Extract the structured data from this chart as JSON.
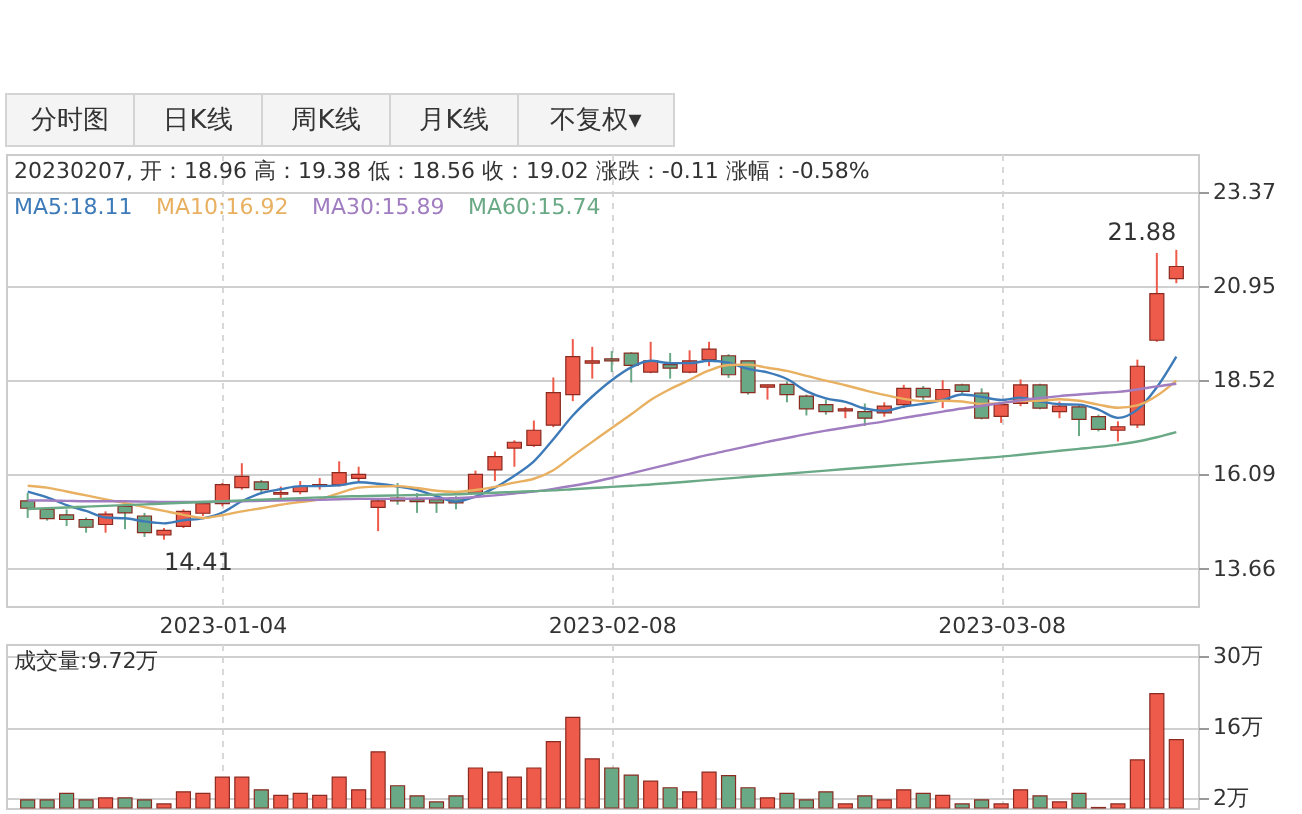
{
  "chart_data": [
    {
      "type": "other",
      "annotations": [
        "分时图",
        "日K线",
        "周K线",
        "月K线",
        "不复权▾"
      ]
    },
    {
      "type": "candlestick",
      "categories": [
        null,
        null,
        null,
        null,
        null,
        null,
        null,
        null,
        null,
        null,
        "2023-01-04",
        null,
        null,
        null,
        null,
        null,
        null,
        null,
        null,
        null,
        null,
        null,
        null,
        null,
        null,
        null,
        null,
        null,
        null,
        null,
        "2023-02-08",
        null,
        null,
        null,
        null,
        null,
        null,
        null,
        null,
        null,
        null,
        null,
        null,
        null,
        null,
        null,
        null,
        null,
        null,
        null,
        "2023-03-08",
        null,
        null,
        null,
        null,
        null,
        null,
        null,
        null,
        null
      ],
      "ohlc": [
        [
          15.41,
          15.61,
          14.97,
          15.22
        ],
        [
          15.19,
          15.24,
          14.9,
          14.95
        ],
        [
          15.05,
          15.19,
          14.76,
          14.93
        ],
        [
          14.93,
          14.98,
          14.59,
          14.73
        ],
        [
          14.8,
          15.14,
          14.59,
          15.07
        ],
        [
          15.27,
          15.41,
          14.68,
          15.1
        ],
        [
          15.02,
          15.1,
          14.48,
          14.59
        ],
        [
          14.53,
          14.71,
          14.41,
          14.65
        ],
        [
          14.75,
          15.19,
          14.71,
          15.14
        ],
        [
          15.09,
          15.41,
          15.02,
          15.34
        ],
        [
          15.34,
          15.87,
          15.27,
          15.83
        ],
        [
          15.75,
          16.38,
          15.7,
          16.04
        ],
        [
          15.9,
          15.95,
          15.58,
          15.7
        ],
        [
          15.58,
          15.78,
          15.48,
          15.62
        ],
        [
          15.65,
          15.92,
          15.58,
          15.78
        ],
        [
          15.78,
          16.0,
          15.7,
          15.83
        ],
        [
          15.83,
          16.43,
          15.78,
          16.14
        ],
        [
          15.99,
          16.29,
          15.87,
          16.09
        ],
        [
          15.24,
          15.48,
          14.63,
          15.41
        ],
        [
          15.48,
          15.87,
          15.31,
          15.41
        ],
        [
          15.44,
          15.61,
          15.1,
          15.39
        ],
        [
          15.44,
          15.53,
          15.1,
          15.36
        ],
        [
          15.48,
          15.53,
          15.19,
          15.36
        ],
        [
          15.61,
          16.19,
          15.58,
          16.09
        ],
        [
          16.21,
          16.68,
          15.92,
          16.55
        ],
        [
          16.77,
          16.97,
          16.29,
          16.92
        ],
        [
          16.84,
          17.48,
          16.8,
          17.23
        ],
        [
          17.36,
          18.59,
          17.31,
          18.2
        ],
        [
          18.15,
          19.58,
          17.98,
          19.13
        ],
        [
          18.96,
          19.38,
          18.56,
          19.02
        ],
        [
          19.07,
          19.27,
          18.73,
          19.02
        ],
        [
          19.22,
          19.24,
          18.46,
          18.9
        ],
        [
          18.73,
          19.51,
          18.7,
          19.02
        ],
        [
          18.92,
          19.22,
          18.56,
          18.83
        ],
        [
          18.73,
          19.29,
          18.7,
          19.02
        ],
        [
          19.05,
          19.51,
          18.88,
          19.32
        ],
        [
          19.15,
          19.19,
          18.58,
          18.66
        ],
        [
          19.02,
          19.02,
          18.15,
          18.2
        ],
        [
          18.34,
          18.4,
          18.02,
          18.4
        ],
        [
          18.41,
          18.49,
          17.95,
          18.15
        ],
        [
          18.11,
          18.15,
          17.61,
          17.78
        ],
        [
          17.89,
          18.02,
          17.63,
          17.71
        ],
        [
          17.73,
          17.83,
          17.54,
          17.78
        ],
        [
          17.71,
          17.92,
          17.34,
          17.54
        ],
        [
          17.68,
          17.95,
          17.58,
          17.85
        ],
        [
          17.89,
          18.4,
          17.8,
          18.31
        ],
        [
          18.31,
          18.37,
          17.97,
          18.09
        ],
        [
          18.02,
          18.52,
          17.8,
          18.28
        ],
        [
          18.4,
          18.43,
          18.14,
          18.23
        ],
        [
          18.19,
          18.31,
          17.51,
          17.54
        ],
        [
          17.59,
          17.94,
          17.42,
          17.89
        ],
        [
          17.92,
          18.54,
          17.85,
          18.4
        ],
        [
          18.4,
          18.43,
          17.77,
          17.8
        ],
        [
          17.71,
          17.97,
          17.54,
          17.85
        ],
        [
          17.83,
          17.89,
          17.08,
          17.51
        ],
        [
          17.58,
          17.63,
          17.2,
          17.25
        ],
        [
          17.23,
          17.46,
          16.94,
          17.32
        ],
        [
          17.37,
          19.05,
          17.29,
          18.88
        ],
        [
          19.55,
          21.8,
          19.51,
          20.75
        ],
        [
          21.14,
          21.88,
          21.02,
          21.45
        ]
      ],
      "colors": [
        "#6aa985",
        "#6aa985",
        "#6aa985",
        "#6aa985",
        "#ee5b4b",
        "#6aa985",
        "#6aa985",
        "#ee5b4b",
        "#ee5b4b",
        "#ee5b4b",
        "#ee5b4b",
        "#ee5b4b",
        "#6aa985",
        "#ee5b4b",
        "#ee5b4b",
        "#ee5b4b",
        "#ee5b4b",
        "#ee5b4b",
        "#ee5b4b",
        "#6aa985",
        "#6aa985",
        "#6aa985",
        "#6aa985",
        "#ee5b4b",
        "#ee5b4b",
        "#ee5b4b",
        "#ee5b4b",
        "#ee5b4b",
        "#ee5b4b",
        "#ee5b4b",
        "#6aa985",
        "#6aa985",
        "#ee5b4b",
        "#6aa985",
        "#ee5b4b",
        "#ee5b4b",
        "#6aa985",
        "#6aa985",
        "#ee5b4b",
        "#6aa985",
        "#6aa985",
        "#6aa985",
        "#ee5b4b",
        "#6aa985",
        "#ee5b4b",
        "#ee5b4b",
        "#6aa985",
        "#ee5b4b",
        "#6aa985",
        "#6aa985",
        "#ee5b4b",
        "#ee5b4b",
        "#6aa985",
        "#ee5b4b",
        "#6aa985",
        "#6aa985",
        "#ee5b4b",
        "#ee5b4b",
        "#ee5b4b",
        "#ee5b4b"
      ],
      "series": [
        {
          "name": "MA5:18.11",
          "type": "line",
          "color": "#3d7ab8",
          "values": [
            15.65,
            15.5,
            15.3,
            15.15,
            14.98,
            14.96,
            14.88,
            14.83,
            14.91,
            14.96,
            15.11,
            15.4,
            15.61,
            15.71,
            15.79,
            15.79,
            15.81,
            15.89,
            15.85,
            15.78,
            15.69,
            15.53,
            15.39,
            15.52,
            15.75,
            16.06,
            16.43,
            17.0,
            17.61,
            18.1,
            18.52,
            18.85,
            19.02,
            18.96,
            18.96,
            19.02,
            18.97,
            18.81,
            18.72,
            18.55,
            18.24,
            18.05,
            17.96,
            17.79,
            17.73,
            17.84,
            17.91,
            18.01,
            18.15,
            18.09,
            18.01,
            18.07,
            17.97,
            17.9,
            17.89,
            17.76,
            17.55,
            17.76,
            18.34,
            19.13
          ]
        },
        {
          "name": "MA10:16.92",
          "type": "line",
          "color": "#e8b060",
          "values": [
            15.8,
            15.75,
            15.65,
            15.55,
            15.45,
            15.35,
            15.25,
            15.15,
            15.05,
            14.97,
            15.04,
            15.14,
            15.22,
            15.31,
            15.38,
            15.45,
            15.61,
            15.75,
            15.78,
            15.79,
            15.74,
            15.67,
            15.64,
            15.69,
            15.77,
            15.88,
            15.98,
            16.2,
            16.57,
            16.93,
            17.29,
            17.64,
            18.01,
            18.29,
            18.53,
            18.77,
            18.91,
            18.92,
            18.84,
            18.76,
            18.63,
            18.51,
            18.39,
            18.26,
            18.14,
            18.04,
            17.98,
            17.99,
            17.97,
            17.91,
            17.93,
            17.99,
            17.99,
            18.03,
            17.99,
            17.89,
            17.81,
            17.87,
            18.12,
            18.51
          ]
        },
        {
          "name": "MA30:15.89",
          "type": "line",
          "color": "#a07cc0",
          "values": [
            15.42,
            15.42,
            15.41,
            15.4,
            15.4,
            15.4,
            15.39,
            15.38,
            15.38,
            15.38,
            15.39,
            15.4,
            15.41,
            15.42,
            15.43,
            15.44,
            15.45,
            15.46,
            15.46,
            15.46,
            15.47,
            15.47,
            15.48,
            15.51,
            15.55,
            15.6,
            15.65,
            15.72,
            15.8,
            15.89,
            16.0,
            16.12,
            16.24,
            16.36,
            16.48,
            16.6,
            16.71,
            16.82,
            16.93,
            17.03,
            17.13,
            17.22,
            17.3,
            17.38,
            17.46,
            17.55,
            17.63,
            17.71,
            17.79,
            17.86,
            17.93,
            18.0,
            18.06,
            18.11,
            18.15,
            18.19,
            18.22,
            18.28,
            18.36,
            18.43
          ]
        },
        {
          "name": "MA60:15.74",
          "type": "line",
          "color": "#6aa985",
          "values": [
            15.2,
            15.22,
            15.24,
            15.26,
            15.28,
            15.3,
            15.32,
            15.34,
            15.36,
            15.38,
            15.4,
            15.42,
            15.44,
            15.46,
            15.48,
            15.5,
            15.52,
            15.53,
            15.54,
            15.55,
            15.56,
            15.57,
            15.58,
            15.6,
            15.62,
            15.64,
            15.66,
            15.68,
            15.71,
            15.74,
            15.77,
            15.8,
            15.83,
            15.87,
            15.91,
            15.95,
            15.99,
            16.03,
            16.07,
            16.11,
            16.15,
            16.19,
            16.23,
            16.27,
            16.31,
            16.35,
            16.39,
            16.43,
            16.47,
            16.51,
            16.55,
            16.6,
            16.65,
            16.7,
            16.75,
            16.8,
            16.86,
            16.94,
            17.05,
            17.18
          ]
        }
      ],
      "ylim": [
        12.7,
        24.35
      ],
      "yticks": [
        13.66,
        16.09,
        18.52,
        20.95,
        23.37
      ],
      "grid": true,
      "legend": "top left",
      "annotations": [
        "20230207, 开：18.96 高：19.38 低：18.56 收：19.02 涨跌：-0.11 涨幅：-0.58%",
        "21.88",
        "14.41"
      ]
    },
    {
      "type": "bar",
      "title": "成交量:9.72万",
      "categories": [
        null,
        null,
        null,
        null,
        null,
        null,
        null,
        null,
        null,
        null,
        "2023-01-04",
        null,
        null,
        null,
        null,
        null,
        null,
        null,
        null,
        null,
        null,
        null,
        null,
        null,
        null,
        null,
        null,
        null,
        null,
        null,
        "2023-02-08",
        null,
        null,
        null,
        null,
        null,
        null,
        null,
        null,
        null,
        null,
        null,
        null,
        null,
        null,
        null,
        null,
        null,
        null,
        null,
        "2023-03-08",
        null,
        null,
        null,
        null,
        null,
        null,
        null,
        null,
        null
      ],
      "values": [
        1.6,
        1.6,
        2.9,
        1.6,
        2.0,
        2.0,
        1.6,
        0.8,
        3.2,
        2.9,
        6.1,
        6.1,
        3.6,
        2.5,
        2.9,
        2.5,
        6.1,
        3.6,
        11.1,
        4.4,
        2.4,
        1.2,
        2.4,
        7.9,
        7.1,
        6.1,
        7.9,
        13.1,
        17.9,
        9.7,
        7.9,
        6.5,
        5.3,
        4.0,
        3.2,
        7.1,
        6.4,
        4.0,
        2.0,
        2.9,
        1.6,
        3.2,
        0.8,
        2.4,
        1.6,
        3.6,
        2.9,
        2.5,
        0.8,
        1.6,
        0.8,
        3.6,
        2.4,
        1.2,
        2.9,
        0.1,
        0.8,
        9.5,
        22.6,
        13.5
      ],
      "colors": [
        "#6aa985",
        "#6aa985",
        "#6aa985",
        "#6aa985",
        "#ee5b4b",
        "#6aa985",
        "#6aa985",
        "#ee5b4b",
        "#ee5b4b",
        "#ee5b4b",
        "#ee5b4b",
        "#ee5b4b",
        "#6aa985",
        "#ee5b4b",
        "#ee5b4b",
        "#ee5b4b",
        "#ee5b4b",
        "#ee5b4b",
        "#ee5b4b",
        "#6aa985",
        "#6aa985",
        "#6aa985",
        "#6aa985",
        "#ee5b4b",
        "#ee5b4b",
        "#ee5b4b",
        "#ee5b4b",
        "#ee5b4b",
        "#ee5b4b",
        "#ee5b4b",
        "#6aa985",
        "#6aa985",
        "#ee5b4b",
        "#6aa985",
        "#ee5b4b",
        "#ee5b4b",
        "#6aa985",
        "#6aa985",
        "#ee5b4b",
        "#6aa985",
        "#6aa985",
        "#6aa985",
        "#ee5b4b",
        "#6aa985",
        "#ee5b4b",
        "#ee5b4b",
        "#6aa985",
        "#ee5b4b",
        "#6aa985",
        "#6aa985",
        "#ee5b4b",
        "#ee5b4b",
        "#6aa985",
        "#ee5b4b",
        "#6aa985",
        "#6aa985",
        "#ee5b4b",
        "#ee5b4b",
        "#ee5b4b",
        "#ee5b4b"
      ],
      "ylim": [
        0,
        32.4
      ],
      "yticks": [
        {
          "value": 2,
          "label": "2万"
        },
        {
          "value": 16,
          "label": "16万"
        },
        {
          "value": 30,
          "label": "30万"
        }
      ],
      "grid": true,
      "tick_labels": "y"
    }
  ]
}
